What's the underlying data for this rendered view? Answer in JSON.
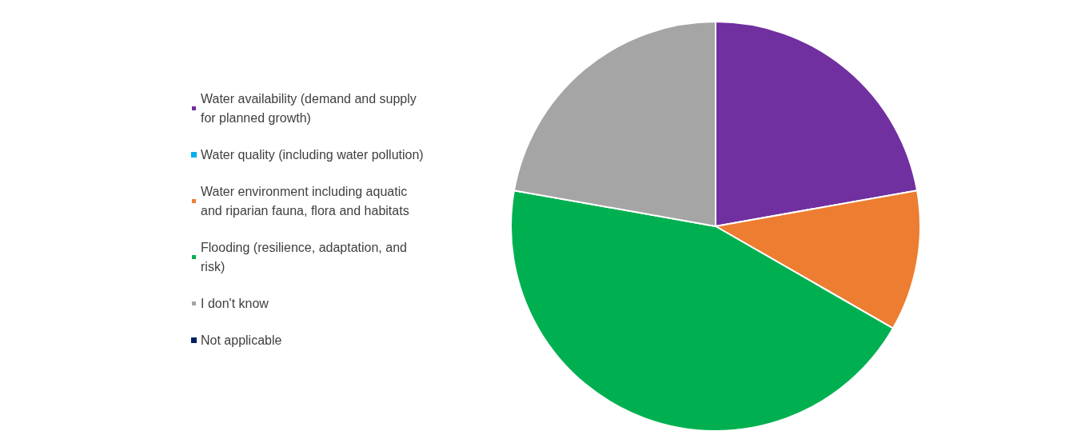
{
  "chart_data": {
    "type": "pie",
    "categories": [
      "Water availability (demand and supply for planned growth)",
      "Water quality (including water pollution)",
      "Water environment including aquatic and riparian fauna, flora and habitats",
      "Flooding (resilience, adaptation, and risk)",
      "I don't know",
      "Not applicable"
    ],
    "values": [
      22.2,
      0,
      11.1,
      44.5,
      22.2,
      0
    ],
    "colors": [
      "#7030a0",
      "#00b0f0",
      "#ed7d31",
      "#00b050",
      "#a5a5a5",
      "#002060"
    ],
    "legend": "left"
  }
}
